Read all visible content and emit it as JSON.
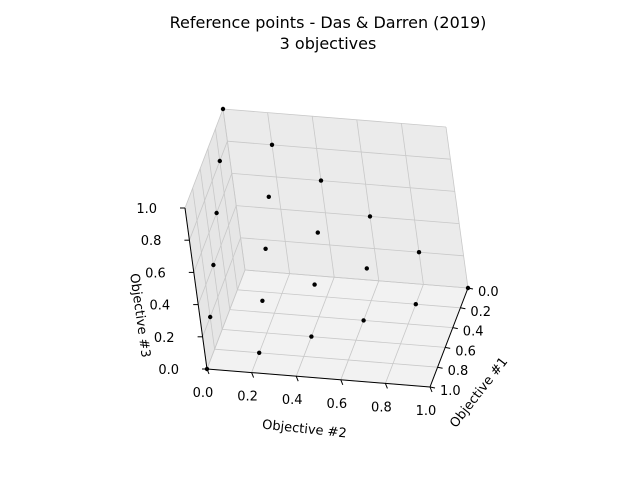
{
  "chart_data": {
    "type": "scatter",
    "title": "Reference points - Das & Darren (2019)",
    "subtitle": "3 objectives",
    "xlabel": "Objective #1",
    "ylabel": "Objective #2",
    "zlabel": "Objective #3",
    "xlim": [
      0,
      1
    ],
    "ylim": [
      0,
      1
    ],
    "zlim": [
      0,
      1
    ],
    "ticks": [
      "0.0",
      "0.2",
      "0.4",
      "0.6",
      "0.8",
      "1.0"
    ],
    "grid": true,
    "point_color": "#000000",
    "points": [
      {
        "x": 0.0,
        "y": 0.0,
        "z": 1.0
      },
      {
        "x": 0.2,
        "y": 0.0,
        "z": 0.8
      },
      {
        "x": 0.4,
        "y": 0.0,
        "z": 0.6
      },
      {
        "x": 0.6,
        "y": 0.0,
        "z": 0.4
      },
      {
        "x": 0.8,
        "y": 0.0,
        "z": 0.2
      },
      {
        "x": 1.0,
        "y": 0.0,
        "z": 0.0
      },
      {
        "x": 0.0,
        "y": 0.2,
        "z": 0.8
      },
      {
        "x": 0.2,
        "y": 0.2,
        "z": 0.6
      },
      {
        "x": 0.4,
        "y": 0.2,
        "z": 0.4
      },
      {
        "x": 0.6,
        "y": 0.2,
        "z": 0.2
      },
      {
        "x": 0.8,
        "y": 0.2,
        "z": 0.0
      },
      {
        "x": 0.0,
        "y": 0.4,
        "z": 0.6
      },
      {
        "x": 0.2,
        "y": 0.4,
        "z": 0.4
      },
      {
        "x": 0.4,
        "y": 0.4,
        "z": 0.2
      },
      {
        "x": 0.6,
        "y": 0.4,
        "z": 0.0
      },
      {
        "x": 0.0,
        "y": 0.6,
        "z": 0.4
      },
      {
        "x": 0.2,
        "y": 0.6,
        "z": 0.2
      },
      {
        "x": 0.4,
        "y": 0.6,
        "z": 0.0
      },
      {
        "x": 0.0,
        "y": 0.8,
        "z": 0.2
      },
      {
        "x": 0.2,
        "y": 0.8,
        "z": 0.0
      },
      {
        "x": 0.0,
        "y": 1.0,
        "z": 0.0
      }
    ]
  }
}
